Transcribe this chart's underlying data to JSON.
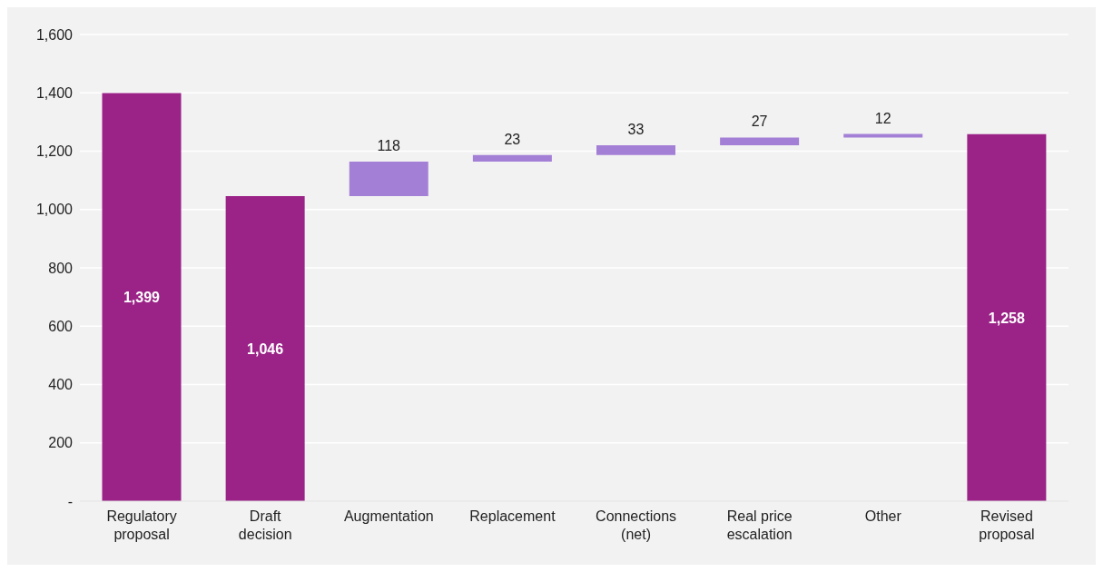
{
  "chart_data": {
    "type": "bar",
    "categories": [
      "Regulatory proposal",
      "Draft decision",
      "Augmentation",
      "Replacement",
      "Connections (net)",
      "Real price escalation",
      "Other",
      "Revised proposal"
    ],
    "values": [
      1399,
      1046,
      118,
      23,
      33,
      27,
      12,
      1258
    ],
    "base": [
      0,
      0,
      1046,
      1164,
      1187,
      1220,
      1247,
      0
    ],
    "colors": [
      "#9b2387",
      "#9b2387",
      "#a47fd6",
      "#a47fd6",
      "#a47fd6",
      "#a47fd6",
      "#a47fd6",
      "#9b2387"
    ],
    "ylim": [
      0,
      1600
    ],
    "yticks": [
      {
        "value": 0,
        "label": "-"
      },
      {
        "value": 200,
        "label": "200"
      },
      {
        "value": 400,
        "label": "400"
      },
      {
        "value": 600,
        "label": "600"
      },
      {
        "value": 800,
        "label": "800"
      },
      {
        "value": 1000,
        "label": "1,000"
      },
      {
        "value": 1200,
        "label": "1,200"
      },
      {
        "value": 1400,
        "label": "1,400"
      },
      {
        "value": 1600,
        "label": "1,600"
      }
    ],
    "value_labels": [
      "1,399",
      "1,046",
      "118",
      "23",
      "33",
      "27",
      "12",
      "1,258"
    ],
    "grid": "y",
    "legend": false
  }
}
